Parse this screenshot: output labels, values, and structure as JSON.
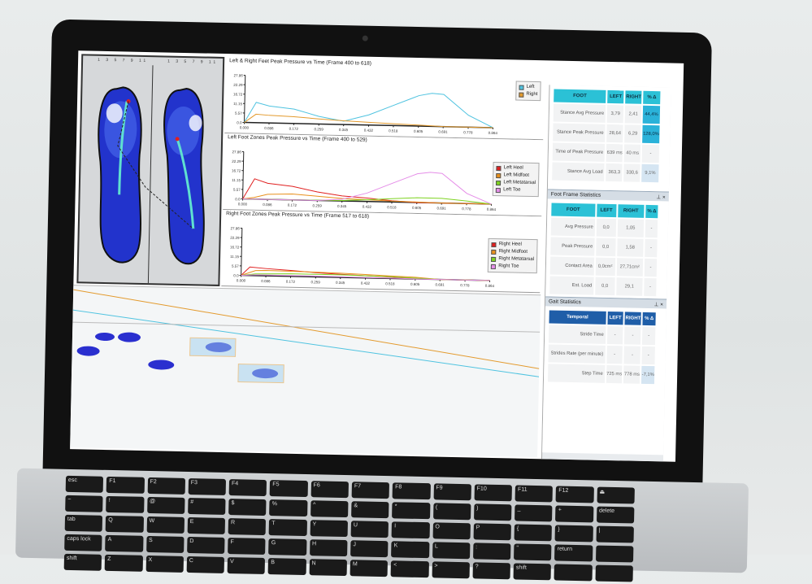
{
  "foot_panel": {
    "ruler_left": "1 3 5 7 9 11",
    "ruler_right": "1 3 5 7 9 11"
  },
  "charts": [
    {
      "title": "Left & Right Feet Peak Pressure vs Time (Frame 400 to 618)",
      "yticks": [
        "0.0",
        "5.57",
        "11.15",
        "16.72",
        "22.29",
        "27.86"
      ],
      "xticks": [
        "0.000",
        "0.086",
        "0.172",
        "0.259",
        "0.345",
        "0.432",
        "0.518",
        "0.605",
        "0.691",
        "0.778",
        "0.864"
      ],
      "ylim": [
        0,
        27.86
      ],
      "xlim": [
        0,
        0.864
      ],
      "series": [
        {
          "name": "Left",
          "color": "#4fc3e0",
          "x": [
            0,
            0.04,
            0.086,
            0.172,
            0.259,
            0.345,
            0.432,
            0.518,
            0.605,
            0.65,
            0.691,
            0.778,
            0.864
          ],
          "y": [
            0,
            12,
            10,
            8.5,
            4.5,
            2,
            6,
            12,
            18,
            19.5,
            19,
            7,
            0
          ]
        },
        {
          "name": "Right",
          "color": "#e39a2d",
          "x": [
            0,
            0.04,
            0.086,
            0.172,
            0.259,
            0.345,
            0.432,
            0.518,
            0.605,
            0.68,
            0.691,
            0.864
          ],
          "y": [
            0,
            5,
            4.5,
            4,
            3,
            2.2,
            1.6,
            1.1,
            0.6,
            0.1,
            0,
            0
          ]
        }
      ]
    },
    {
      "title": "Left Foot Zones Peak Pressure vs Time (Frame 400 to 529)",
      "yticks": [
        "0.0",
        "5.57",
        "11.15",
        "16.72",
        "22.29",
        "27.86"
      ],
      "xticks": [
        "0.000",
        "0.086",
        "0.172",
        "0.259",
        "0.345",
        "0.432",
        "0.518",
        "0.605",
        "0.691",
        "0.778",
        "0.864"
      ],
      "ylim": [
        0,
        27.86
      ],
      "xlim": [
        0,
        0.864
      ],
      "series": [
        {
          "name": "Left Heel",
          "color": "#e02020",
          "x": [
            0,
            0.04,
            0.086,
            0.172,
            0.259,
            0.345,
            0.432,
            0.518,
            0.605,
            0.864
          ],
          "y": [
            0,
            12,
            9.5,
            8,
            5,
            3,
            2,
            0.8,
            0,
            0
          ]
        },
        {
          "name": "Left Midfoot",
          "color": "#e8901c",
          "x": [
            0,
            0.04,
            0.086,
            0.172,
            0.259,
            0.345,
            0.432,
            0.518,
            0.605,
            0.691,
            0.864
          ],
          "y": [
            0,
            1,
            3,
            3.5,
            2.5,
            1.5,
            1,
            0.6,
            0.3,
            0,
            0
          ]
        },
        {
          "name": "Left Metatarsal",
          "color": "#7ed321",
          "x": [
            0,
            0.172,
            0.345,
            0.432,
            0.518,
            0.605,
            0.691,
            0.778,
            0.864
          ],
          "y": [
            0,
            0,
            0.3,
            1,
            2,
            2.8,
            2.8,
            1.5,
            0
          ]
        },
        {
          "name": "Left Toe",
          "color": "#e58ee8",
          "x": [
            0,
            0.259,
            0.345,
            0.432,
            0.518,
            0.605,
            0.65,
            0.691,
            0.778,
            0.864
          ],
          "y": [
            0,
            0,
            1,
            5,
            11,
            17,
            18,
            17.5,
            6,
            0
          ]
        }
      ]
    },
    {
      "title": "Right Foot Zones Peak Pressure vs Time (Frame 517 to 618)",
      "yticks": [
        "0.0",
        "5.57",
        "11.15",
        "16.72",
        "22.29",
        "27.86"
      ],
      "xticks": [
        "0.000",
        "0.086",
        "0.172",
        "0.259",
        "0.345",
        "0.432",
        "0.518",
        "0.605",
        "0.691",
        "0.778",
        "0.864"
      ],
      "ylim": [
        0,
        27.86
      ],
      "xlim": [
        0,
        0.864
      ],
      "series": [
        {
          "name": "Right Heel",
          "color": "#e02020",
          "x": [
            0,
            0.03,
            0.086,
            0.172,
            0.259,
            0.345,
            0.432,
            0.518,
            0.605,
            0.691,
            0.864
          ],
          "y": [
            0,
            5,
            4.3,
            3.5,
            2.5,
            1.8,
            1.3,
            0.8,
            0.2,
            0,
            0
          ]
        },
        {
          "name": "Right Midfoot",
          "color": "#e8901c",
          "x": [
            0,
            0.05,
            0.086,
            0.172,
            0.259,
            0.345,
            0.432,
            0.518,
            0.605,
            0.691,
            0.864
          ],
          "y": [
            0,
            3,
            3.2,
            3,
            2.8,
            2.5,
            2,
            1.5,
            1,
            0,
            0
          ]
        },
        {
          "name": "Right Metatarsal",
          "color": "#7ed321",
          "x": [
            0,
            0.05,
            0.172,
            0.345,
            0.518,
            0.605,
            0.691,
            0.864
          ],
          "y": [
            0,
            1,
            1.5,
            1.5,
            1,
            0.5,
            0,
            0
          ]
        },
        {
          "name": "Right Toe",
          "color": "#e58ee8",
          "x": [
            0,
            0.05,
            0.259,
            0.432,
            0.518,
            0.605,
            0.864
          ],
          "y": [
            0,
            0.5,
            0.5,
            0.3,
            0.2,
            0,
            0
          ]
        }
      ]
    }
  ],
  "stance_table": {
    "headers": [
      "FOOT",
      "LEFT",
      "RIGHT",
      "% Δ"
    ],
    "rows": [
      [
        "Stance Avg Pressure",
        "3,79",
        "2,41",
        "44,4%"
      ],
      [
        "Stance Peak Pressure",
        "28,64",
        "6,29",
        "128,0%"
      ],
      [
        "Time of Peak Pressure",
        "639 ms",
        "40 ms",
        "-"
      ],
      [
        "Stance Avg Load",
        "363,3",
        "330,6",
        "9,1%"
      ]
    ]
  },
  "frame_stats": {
    "title": "Foot Frame Statistics",
    "headers": [
      "FOOT",
      "LEFT",
      "RIGHT",
      "% Δ"
    ],
    "rows": [
      [
        "Avg Pressure",
        "0,0",
        "1,05",
        "-"
      ],
      [
        "Peak Pressure",
        "0,0",
        "1,58",
        "-"
      ],
      [
        "Contact Area",
        "0,0cm²",
        "27,71cm²",
        "-"
      ],
      [
        "Est. Load",
        "0,0",
        "29,1",
        "-"
      ]
    ]
  },
  "gait_stats": {
    "title": "Gait Statistics",
    "headers": [
      "Temporal",
      "LEFT",
      "RIGHT",
      "% Δ"
    ],
    "rows": [
      [
        "Stride Time",
        "-",
        "-",
        "-"
      ],
      [
        "Strides Rate (per minute)",
        "-",
        "-",
        "-"
      ],
      [
        "Step Time",
        "725 ms",
        "778 ms",
        "-7,1%"
      ]
    ]
  },
  "panel_icons": {
    "pin": "pin-icon",
    "close": "close-icon"
  },
  "colors": {
    "table_header": "#2bc1d6",
    "gait_header": "#1f5ea8",
    "highlight": "#2ab2d9"
  },
  "keyboard": {
    "keys": [
      "esc",
      "F1",
      "F2",
      "F3",
      "F4",
      "F5",
      "F6",
      "F7",
      "F8",
      "F9",
      "F10",
      "F11",
      "F12",
      "⏏",
      "~",
      "!",
      "@",
      "#",
      "$",
      "%",
      "^",
      "&",
      "*",
      "(",
      ")",
      "_",
      "+",
      "delete",
      "tab",
      "Q",
      "W",
      "E",
      "R",
      "T",
      "Y",
      "U",
      "I",
      "O",
      "P",
      "{",
      "}",
      "|",
      "caps lock",
      "A",
      "S",
      "D",
      "F",
      "G",
      "H",
      "J",
      "K",
      "L",
      ":",
      "\"",
      "return",
      "",
      "shift",
      "Z",
      "X",
      "C",
      "V",
      "B",
      "N",
      "M",
      "<",
      ">",
      "?",
      "shift",
      "",
      ""
    ]
  }
}
